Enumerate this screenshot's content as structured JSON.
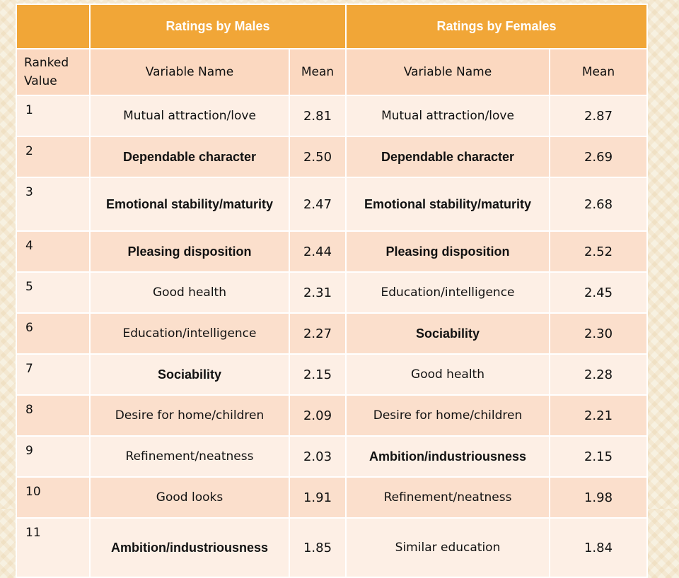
{
  "header": {
    "males": "Ratings by Males",
    "females": "Ratings by Females"
  },
  "subheader": {
    "ranked_value": "Ranked Value",
    "variable_name_m": "Variable Name",
    "mean_m": "Mean",
    "variable_name_f": "Variable Name",
    "mean_f": "Mean"
  },
  "rows": [
    {
      "rank": "1",
      "m_var": "Mutual attraction/love",
      "m_mean": "2.81",
      "f_var": "Mutual attraction/love",
      "f_mean": "2.87"
    },
    {
      "rank": "2",
      "m_var": "Dependable character",
      "m_mean": "2.50",
      "f_var": "Dependable character",
      "f_mean": "2.69"
    },
    {
      "rank": "3",
      "m_var": "Emotional stability/maturity",
      "m_mean": "2.47",
      "f_var": "Emotional stability/maturity",
      "f_mean": "2.68"
    },
    {
      "rank": "4",
      "m_var": "Pleasing disposition",
      "m_mean": "2.44",
      "f_var": "Pleasing disposition",
      "f_mean": "2.52"
    },
    {
      "rank": "5",
      "m_var": "Good health",
      "m_mean": "2.31",
      "f_var": "Education/intelligence",
      "f_mean": "2.45"
    },
    {
      "rank": "6",
      "m_var": "Education/intelligence",
      "m_mean": "2.27",
      "f_var": "Sociability",
      "f_mean": "2.30"
    },
    {
      "rank": "7",
      "m_var": "Sociability",
      "m_mean": "2.15",
      "f_var": "Good health",
      "f_mean": "2.28"
    },
    {
      "rank": "8",
      "m_var": "Desire for home/children",
      "m_mean": "2.09",
      "f_var": "Desire for home/children",
      "f_mean": "2.21"
    },
    {
      "rank": "9",
      "m_var": "Refinement/neatness",
      "m_mean": "2.03",
      "f_var": "Ambition/industriousness",
      "f_mean": "2.15"
    },
    {
      "rank": "10",
      "m_var": "Good looks",
      "m_mean": "1.91",
      "f_var": "Refinement/neatness",
      "f_mean": "1.98"
    },
    {
      "rank": "11",
      "m_var": "Ambition/industriousness",
      "m_mean": "1.85",
      "f_var": "Similar education",
      "f_mean": "1.84"
    }
  ]
}
